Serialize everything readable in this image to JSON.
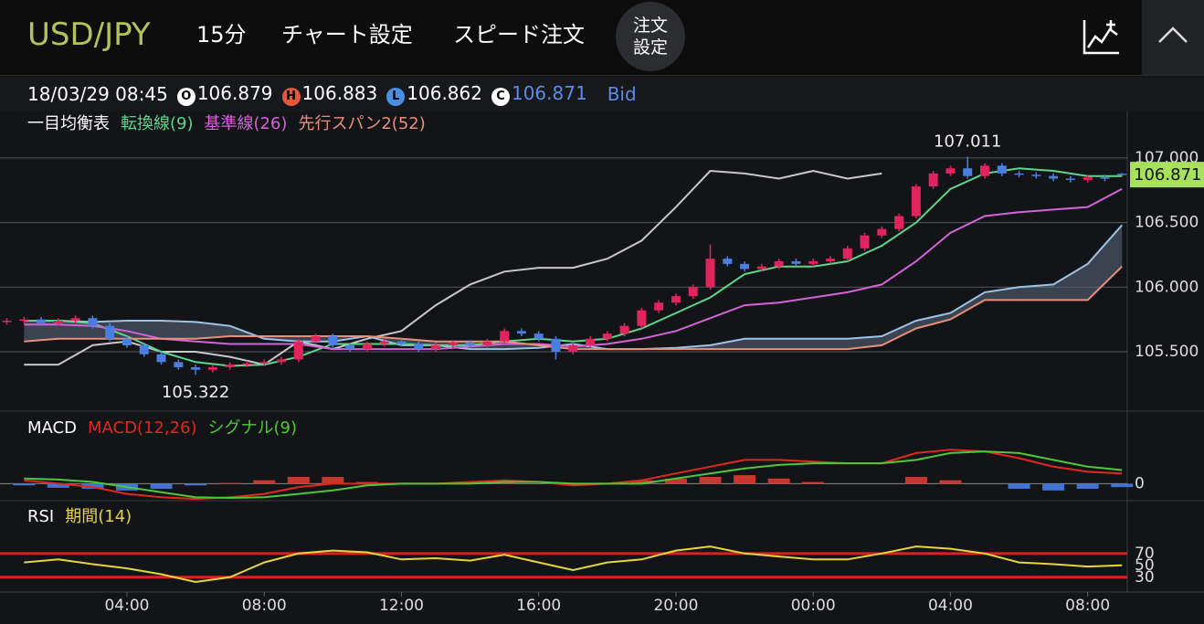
{
  "header": {
    "symbol": "USD/JPY",
    "timeframe": "15分",
    "menu": [
      "チャート設定",
      "スピード注文"
    ],
    "order_button": [
      "注文",
      "設定"
    ]
  },
  "quote": {
    "datetime": "18/03/29 08:45",
    "items": [
      {
        "icon": "O",
        "value": 106.879,
        "icon_color": "#ffffff",
        "text_color": "#ffffff"
      },
      {
        "icon": "H",
        "value": 106.883,
        "icon_color": "#e4573b",
        "text_color": "#ffffff"
      },
      {
        "icon": "L",
        "value": 106.862,
        "icon_color": "#4a90e2",
        "text_color": "#ffffff"
      },
      {
        "icon": "C",
        "value": 106.871,
        "icon_color": "#ffffff",
        "text_color": "#5b8de8"
      }
    ],
    "side": "Bid"
  },
  "chart_data": [
    {
      "type": "candlestick",
      "title": "一目均衡表",
      "up_color": "#e0245e",
      "down_color": "#4a7fe0",
      "x": [
        0.5,
        1,
        1.5,
        2,
        2.5,
        3,
        3.5,
        4,
        4.5,
        5,
        5.5,
        6,
        6.5,
        7,
        7.5,
        8,
        8.5,
        9,
        9.5,
        10,
        10.5,
        11,
        11.5,
        12,
        12.5,
        13,
        13.5,
        14,
        14.5,
        15,
        15.5,
        16,
        16.5,
        17,
        17.5,
        18,
        18.5,
        19,
        19.5,
        20,
        20.5,
        21,
        21.5,
        22,
        22.5,
        23,
        23.5,
        24,
        24.5,
        25,
        25.5,
        26,
        26.5,
        27,
        27.5,
        28,
        28.5,
        29,
        29.5,
        30,
        30.5,
        31,
        31.5,
        32,
        32.5,
        33
      ],
      "open": [
        105.73,
        105.74,
        105.75,
        105.72,
        105.74,
        105.76,
        105.7,
        105.6,
        105.55,
        105.48,
        105.42,
        105.38,
        105.36,
        105.38,
        105.4,
        105.41,
        105.42,
        105.44,
        105.58,
        105.62,
        105.55,
        105.52,
        105.56,
        105.58,
        105.56,
        105.52,
        105.55,
        105.57,
        105.55,
        105.58,
        105.66,
        105.64,
        105.6,
        105.5,
        105.55,
        105.6,
        105.64,
        105.7,
        105.82,
        105.88,
        105.93,
        106,
        106.22,
        106.18,
        106.14,
        106.16,
        106.2,
        106.18,
        106.2,
        106.22,
        106.3,
        106.4,
        106.45,
        106.55,
        106.78,
        106.88,
        106.92,
        106.86,
        106.94,
        106.88,
        106.87,
        106.86,
        106.84,
        106.83,
        106.85,
        106.879
      ],
      "high": [
        105.76,
        105.77,
        105.77,
        105.76,
        105.78,
        105.78,
        105.72,
        105.62,
        105.57,
        105.5,
        105.44,
        105.4,
        105.4,
        105.42,
        105.43,
        105.44,
        105.46,
        105.6,
        105.64,
        105.64,
        105.57,
        105.58,
        105.6,
        105.6,
        105.58,
        105.57,
        105.59,
        105.59,
        105.6,
        105.68,
        105.68,
        105.66,
        105.62,
        105.57,
        105.62,
        105.66,
        105.72,
        105.84,
        105.9,
        105.95,
        106.02,
        106.33,
        106.24,
        106.2,
        106.18,
        106.22,
        106.22,
        106.22,
        106.24,
        106.32,
        106.42,
        106.47,
        106.57,
        106.8,
        106.9,
        106.94,
        107.011,
        106.96,
        106.96,
        106.9,
        106.89,
        106.88,
        106.86,
        106.87,
        106.87,
        106.883
      ],
      "low": [
        105.71,
        105.72,
        105.7,
        105.7,
        105.72,
        105.68,
        105.58,
        105.53,
        105.46,
        105.4,
        105.36,
        105.322,
        105.34,
        105.36,
        105.38,
        105.39,
        105.4,
        105.42,
        105.56,
        105.53,
        105.5,
        105.5,
        105.54,
        105.54,
        105.5,
        105.5,
        105.53,
        105.53,
        105.53,
        105.56,
        105.62,
        105.58,
        105.44,
        105.48,
        105.53,
        105.58,
        105.62,
        105.68,
        105.8,
        105.86,
        105.91,
        105.98,
        106.16,
        106.12,
        106.12,
        106.14,
        106.16,
        106.16,
        106.18,
        106.2,
        106.28,
        106.38,
        106.43,
        106.53,
        106.76,
        106.86,
        106.84,
        106.84,
        106.86,
        106.85,
        106.84,
        106.82,
        106.81,
        106.81,
        106.82,
        106.862
      ],
      "close": [
        105.74,
        105.75,
        105.72,
        105.74,
        105.76,
        105.7,
        105.6,
        105.55,
        105.48,
        105.42,
        105.38,
        105.36,
        105.38,
        105.4,
        105.41,
        105.42,
        105.44,
        105.58,
        105.62,
        105.55,
        105.52,
        105.56,
        105.58,
        105.56,
        105.52,
        105.55,
        105.57,
        105.55,
        105.58,
        105.66,
        105.64,
        105.6,
        105.5,
        105.55,
        105.6,
        105.64,
        105.7,
        105.82,
        105.88,
        105.93,
        106,
        106.22,
        106.18,
        106.14,
        106.16,
        106.2,
        106.18,
        106.2,
        106.22,
        106.3,
        106.4,
        106.45,
        106.55,
        106.78,
        106.88,
        106.92,
        106.86,
        106.94,
        106.88,
        106.87,
        106.86,
        106.84,
        106.83,
        106.85,
        106.84,
        106.871
      ],
      "series": [
        {
          "name": "転換線(9)",
          "color": "#5ed58a",
          "x": [
            1,
            2,
            3,
            4,
            5,
            6,
            7,
            8,
            9,
            10,
            11,
            12,
            13,
            14,
            15,
            16,
            17,
            18,
            19,
            20,
            21,
            22,
            23,
            24,
            25,
            26,
            27,
            28,
            29,
            30,
            31,
            32,
            33
          ],
          "values": [
            105.74,
            105.74,
            105.72,
            105.62,
            105.5,
            105.42,
            105.39,
            105.4,
            105.46,
            105.56,
            105.56,
            105.56,
            105.55,
            105.55,
            105.58,
            105.6,
            105.58,
            105.6,
            105.68,
            105.8,
            105.92,
            106.1,
            106.16,
            106.16,
            106.2,
            106.32,
            106.5,
            106.76,
            106.88,
            106.92,
            106.9,
            106.86,
            106.86
          ]
        },
        {
          "name": "基準線(26)",
          "color": "#d264d8",
          "x": [
            1,
            2,
            3,
            4,
            5,
            6,
            7,
            8,
            9,
            10,
            11,
            12,
            13,
            14,
            15,
            16,
            17,
            18,
            19,
            20,
            21,
            22,
            23,
            24,
            25,
            26,
            27,
            28,
            29,
            30,
            31,
            32,
            33
          ],
          "values": [
            105.71,
            105.71,
            105.7,
            105.66,
            105.6,
            105.58,
            105.56,
            105.56,
            105.56,
            105.52,
            105.52,
            105.52,
            105.52,
            105.54,
            105.56,
            105.56,
            105.54,
            105.56,
            105.6,
            105.66,
            105.76,
            105.86,
            105.88,
            105.92,
            105.96,
            106.02,
            106.2,
            106.42,
            106.55,
            106.58,
            106.6,
            106.62,
            106.76
          ]
        },
        {
          "name": "先行スパン2(52)",
          "color": "#e8907a",
          "x": [
            1,
            2,
            3,
            4,
            5,
            6,
            7,
            8,
            9,
            10,
            11,
            12,
            13,
            14,
            15,
            16,
            17,
            18,
            19,
            20,
            21,
            22,
            23,
            24,
            25,
            26,
            27,
            28,
            29,
            30,
            31,
            32,
            33
          ],
          "values": [
            105.58,
            105.6,
            105.6,
            105.6,
            105.6,
            105.6,
            105.62,
            105.62,
            105.62,
            105.62,
            105.62,
            105.6,
            105.58,
            105.58,
            105.58,
            105.55,
            105.52,
            105.52,
            105.52,
            105.52,
            105.52,
            105.52,
            105.52,
            105.52,
            105.52,
            105.55,
            105.68,
            105.75,
            105.9,
            105.9,
            105.9,
            105.9,
            106.16
          ]
        }
      ],
      "lines": [
        {
          "color": "#c8c8c8",
          "x": [
            1,
            2,
            3,
            4,
            5,
            6,
            7,
            8,
            9,
            10,
            11,
            12,
            13,
            14,
            15,
            16,
            17,
            18,
            19,
            20,
            21,
            22,
            23,
            24,
            25,
            26,
            27,
            28,
            29,
            30,
            31,
            32,
            33
          ],
          "values": [
            105.4,
            105.4,
            105.55,
            105.58,
            105.5,
            105.5,
            105.46,
            105.4,
            105.58,
            105.52,
            105.6,
            105.66,
            105.86,
            106.02,
            106.12,
            106.15,
            106.15,
            106.22,
            106.36,
            106.62,
            106.9,
            106.88,
            106.84,
            106.9,
            106.84,
            106.88,
            null,
            null,
            null,
            null,
            null,
            null,
            null
          ]
        },
        {
          "color": "#9cc3e6",
          "x": [
            1,
            2,
            3,
            4,
            5,
            6,
            7,
            8,
            9,
            10,
            11,
            12,
            13,
            14,
            15,
            16,
            17,
            18,
            19,
            20,
            21,
            22,
            23,
            24,
            25,
            26,
            27,
            28,
            29,
            30,
            31,
            32,
            33
          ],
          "values": [
            105.74,
            105.74,
            105.73,
            105.74,
            105.74,
            105.73,
            105.7,
            105.6,
            105.58,
            105.58,
            105.62,
            105.55,
            105.55,
            105.52,
            105.52,
            105.53,
            105.56,
            105.52,
            105.52,
            105.53,
            105.55,
            105.6,
            105.6,
            105.6,
            105.6,
            105.62,
            105.74,
            105.8,
            105.96,
            106,
            106.02,
            106.18,
            106.48
          ]
        }
      ],
      "cloud_color": "#5d6a80",
      "ylim": [
        105.04,
        107.36
      ],
      "yticks": [
        {
          "value": 105.5,
          "label": "105.500"
        },
        {
          "value": 106,
          "label": "106.000"
        },
        {
          "value": 106.5,
          "label": "106.500"
        },
        {
          "value": 107,
          "label": "107.000"
        }
      ],
      "grid": true,
      "high_label": 107.011,
      "low_label": 105.322,
      "last_price": 106.871,
      "last_price_color": "#a6e05c"
    },
    {
      "type": "line",
      "title": "MACD",
      "x": [
        1,
        2,
        3,
        4,
        5,
        6,
        7,
        8,
        9,
        10,
        11,
        12,
        13,
        14,
        15,
        16,
        17,
        18,
        19,
        20,
        21,
        22,
        23,
        24,
        25,
        26,
        27,
        28,
        29,
        30,
        31,
        32,
        33
      ],
      "series": [
        {
          "name": "MACD(12,26)",
          "color": "#e0281e",
          "values": [
            0.01,
            0,
            -0.01,
            -0.03,
            -0.04,
            -0.045,
            -0.04,
            -0.03,
            -0.01,
            0,
            0,
            0,
            0,
            0.005,
            0.01,
            0.005,
            -0.005,
            0,
            0.01,
            0.03,
            0.05,
            0.07,
            0.07,
            0.065,
            0.06,
            0.06,
            0.09,
            0.1,
            0.095,
            0.075,
            0.05,
            0.035,
            0.03
          ]
        },
        {
          "name": "シグナル(9)",
          "color": "#4cc83a",
          "values": [
            0.015,
            0.012,
            0.005,
            -0.01,
            -0.025,
            -0.04,
            -0.042,
            -0.04,
            -0.03,
            -0.02,
            -0.005,
            0,
            0,
            0,
            0.005,
            0.005,
            0,
            0,
            0,
            0.015,
            0.03,
            0.045,
            0.055,
            0.06,
            0.06,
            0.06,
            0.07,
            0.09,
            0.095,
            0.09,
            0.07,
            0.05,
            0.04
          ]
        }
      ],
      "histogram": {
        "up_color": "#c8372d",
        "down_color": "#3f74d4",
        "values": [
          -0.005,
          -0.012,
          -0.015,
          -0.02,
          -0.015,
          -0.005,
          0.002,
          0.01,
          0.02,
          0.02,
          0.005,
          0,
          0,
          0.005,
          0.005,
          0,
          -0.005,
          0,
          0.01,
          0.015,
          0.02,
          0.025,
          0.015,
          0.005,
          0,
          0,
          0.02,
          0.01,
          0,
          -0.015,
          -0.02,
          -0.015,
          -0.01
        ]
      },
      "ylim": [
        -0.05,
        0.2
      ],
      "yticks": [
        0
      ],
      "grid": true
    },
    {
      "type": "line",
      "title": "RSI",
      "x": [
        1,
        2,
        3,
        4,
        5,
        6,
        7,
        8,
        9,
        10,
        11,
        12,
        13,
        14,
        15,
        16,
        17,
        18,
        19,
        20,
        21,
        22,
        23,
        24,
        25,
        26,
        27,
        28,
        29,
        30,
        31,
        32,
        33
      ],
      "series": [
        {
          "name": "期間(14)",
          "color": "#e6d63a",
          "values": [
            55,
            60,
            52,
            45,
            35,
            22,
            30,
            55,
            70,
            75,
            72,
            60,
            62,
            58,
            68,
            55,
            42,
            55,
            60,
            75,
            82,
            70,
            65,
            60,
            60,
            70,
            82,
            78,
            70,
            55,
            52,
            48,
            50
          ]
        }
      ],
      "bands": [
        {
          "value": 70,
          "color": "#e02020"
        },
        {
          "value": 30,
          "color": "#e02020"
        }
      ],
      "ylim": [
        5,
        153
      ],
      "yticks": [
        70,
        50,
        30
      ],
      "grid": false,
      "xlim": [
        0.3,
        33.1
      ],
      "xticks": [
        {
          "value": 4,
          "label": "04:00"
        },
        {
          "value": 8,
          "label": "08:00"
        },
        {
          "value": 12,
          "label": "12:00"
        },
        {
          "value": 16,
          "label": "16:00"
        },
        {
          "value": 20,
          "label": "20:00"
        },
        {
          "value": 24,
          "label": "00:00"
        },
        {
          "value": 28,
          "label": "04:00"
        },
        {
          "value": 32,
          "label": "08:00"
        }
      ]
    }
  ]
}
